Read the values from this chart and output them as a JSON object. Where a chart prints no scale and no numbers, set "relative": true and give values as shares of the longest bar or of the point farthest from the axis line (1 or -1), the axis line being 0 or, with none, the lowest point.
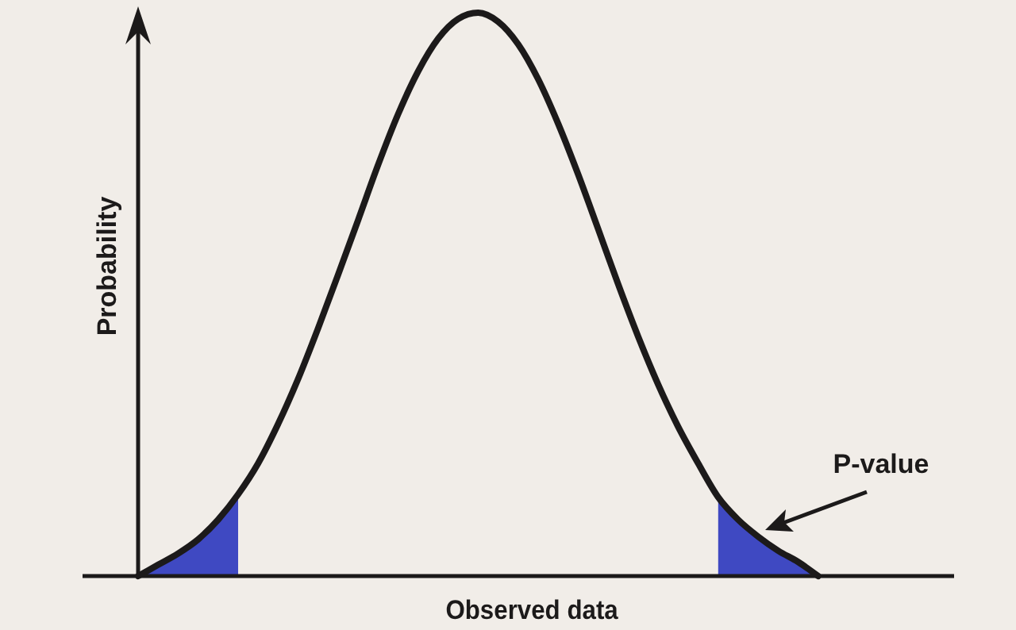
{
  "chart_data": {
    "type": "line",
    "relative": true,
    "tick_labels": false,
    "xlabel": "Observed data",
    "ylabel": "Probability",
    "annotations": [
      "P-value"
    ],
    "categories": [
      null,
      null,
      null,
      null,
      null,
      null,
      null,
      null,
      null,
      null,
      null,
      null,
      null,
      null,
      null,
      null,
      null,
      null,
      null,
      null,
      null,
      null,
      null,
      null,
      null,
      null,
      null,
      null,
      null,
      null,
      null,
      null,
      null,
      null,
      null,
      null,
      null,
      null,
      null,
      null,
      null
    ],
    "series": [
      {
        "type": "area",
        "color": "#3f49c2",
        "values": [
          0,
          0.02,
          0.04,
          0.065,
          0.1,
          0.145,
          null,
          null,
          null,
          null,
          null,
          null,
          null,
          null,
          null,
          null,
          null,
          null,
          null,
          null,
          null,
          null,
          null,
          null,
          null,
          null,
          null,
          null,
          null,
          0.14,
          0.1,
          0.07,
          0.045,
          0.025,
          0,
          null,
          null,
          null,
          null,
          null,
          null
        ]
      },
      {
        "color": "#1c1a1a",
        "values": [
          0,
          0.02,
          0.04,
          0.065,
          0.1,
          0.145,
          0.2,
          0.27,
          0.35,
          0.44,
          0.535,
          0.632,
          0.73,
          0.82,
          0.896,
          0.954,
          0.989,
          1,
          0.984,
          0.944,
          0.882,
          0.803,
          0.713,
          0.616,
          0.518,
          0.425,
          0.34,
          0.265,
          0.2,
          0.14,
          0.1,
          0.07,
          0.045,
          0.025,
          0,
          null,
          null,
          null,
          null,
          null,
          null
        ]
      }
    ]
  }
}
